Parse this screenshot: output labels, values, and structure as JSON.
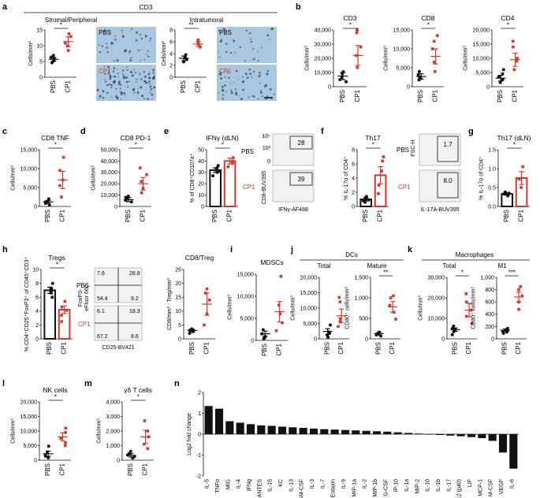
{
  "colors": {
    "pbs": "#111111",
    "cp1": "#d9372d",
    "micrograph_bg": "#a9c7df",
    "micrograph_cells": "#2a3340",
    "flow_bg": "#f2f2ee"
  },
  "figure": {
    "panels": [
      {
        "id": "a",
        "label": "a",
        "title": "CD3"
      },
      {
        "id": "b",
        "label": "b"
      },
      {
        "id": "c",
        "label": "c"
      },
      {
        "id": "d",
        "label": "d"
      },
      {
        "id": "e",
        "label": "e"
      },
      {
        "id": "f",
        "label": "f"
      },
      {
        "id": "g",
        "label": "g"
      },
      {
        "id": "h",
        "label": "h"
      },
      {
        "id": "i",
        "label": "i"
      },
      {
        "id": "j",
        "label": "j"
      },
      {
        "id": "k",
        "label": "k"
      },
      {
        "id": "l",
        "label": "l"
      },
      {
        "id": "m",
        "label": "m"
      },
      {
        "id": "n",
        "label": "n"
      }
    ],
    "panel_a": {
      "stromal_title": "Stromal/Peripheral",
      "intratumoral_title": "Intratumoral",
      "img_pbs": "PBS",
      "img_cp1": "CP1"
    },
    "panel_j": {
      "header": "DCs",
      "sub1": "Total",
      "sub2": "Mature"
    },
    "panel_k": {
      "header": "Macrophages",
      "sub1": "Total",
      "sub2": "M1"
    },
    "flow_e": {
      "ylabel": "CD8-BUV395",
      "xlabel": "IFNγ-AF488",
      "pbs": "PBS",
      "cp1": "CP1",
      "v1": "28",
      "v2": "39",
      "tick1": "10⁵",
      "tick2": "10³",
      "tick3": "0"
    },
    "flow_f": {
      "ylabel": "FSC-H",
      "xlabel": "IL-17A-BUV395",
      "pbs": "PBS",
      "cp1": "CP1",
      "v1": "1.7",
      "v2": "8.0"
    },
    "flow_h": {
      "ylabel1": "FoxP3-",
      "ylabel2": "eFluor 660",
      "xlabel": "CD25-BV421",
      "pbs": "PBS",
      "cp1": "CP1",
      "q_pbs": [
        "7.6",
        "28.8",
        "54.4",
        "9.2"
      ],
      "q_cp1": [
        "6.1",
        "18.3",
        "67.2",
        "8.6"
      ]
    }
  },
  "chart_data": [
    {
      "id": "a1",
      "type": "scatter",
      "title": "",
      "ylabel": "Cells/mm²",
      "categories": [
        "PBS",
        "CP1"
      ],
      "ylim": [
        0,
        15
      ],
      "ticks": [
        "0",
        "5",
        "10",
        "15"
      ],
      "sig": "*",
      "series": [
        {
          "name": "PBS",
          "points": [
            5.2,
            5.8,
            6.3,
            4.6,
            6.9
          ],
          "mean": 5.7,
          "sem": 0.6
        },
        {
          "name": "CP1",
          "points": [
            8.5,
            10.8,
            12.9,
            13.8,
            9.9
          ],
          "mean": 11.3,
          "sem": 1.5
        }
      ]
    },
    {
      "id": "a2",
      "type": "scatter",
      "title": "",
      "ylabel": "Cells/mm²",
      "categories": [
        "PBS",
        "CP1"
      ],
      "ylim": [
        0,
        8
      ],
      "ticks": [
        "0",
        "2",
        "4",
        "6",
        "8"
      ],
      "sig": "**",
      "series": [
        {
          "name": "PBS",
          "points": [
            3.3,
            2.6,
            3.8,
            3.0
          ],
          "mean": 3.2,
          "sem": 0.4
        },
        {
          "name": "CP1",
          "points": [
            5.1,
            6.3,
            5.7,
            5.4
          ],
          "mean": 5.6,
          "sem": 0.4
        }
      ]
    },
    {
      "id": "b1",
      "type": "scatter",
      "title": "CD3",
      "ylabel": "Cells/mm³",
      "categories": [
        "PBS",
        "CP1"
      ],
      "ylim": [
        0,
        40000
      ],
      "ticks": [
        "0",
        "10,000",
        "20,000",
        "30,000",
        "40,000"
      ],
      "sig": "*",
      "series": [
        {
          "name": "PBS",
          "points": [
            3500,
            6500,
            9000,
            10500,
            5000
          ],
          "mean": 7500,
          "sem": 2500
        },
        {
          "name": "CP1",
          "points": [
            13500,
            28000,
            38000,
            40000,
            22000
          ],
          "mean": 22000,
          "sem": 7000
        }
      ]
    },
    {
      "id": "b2",
      "type": "scatter",
      "title": "CD8",
      "ylabel": "Cells/mm³",
      "categories": [
        "PBS",
        "CP1"
      ],
      "ylim": [
        0,
        15000
      ],
      "ticks": [
        "0",
        "5,000",
        "10,000",
        "15,000"
      ],
      "sig": "*",
      "series": [
        {
          "name": "PBS",
          "points": [
            1800,
            2500,
            3200,
            4000,
            2200
          ],
          "mean": 2700,
          "sem": 700
        },
        {
          "name": "CP1",
          "points": [
            4000,
            6500,
            10000,
            12000,
            13500
          ],
          "mean": 8000,
          "sem": 2000
        }
      ]
    },
    {
      "id": "b3",
      "type": "scatter",
      "title": "CD4",
      "ylabel": "Cells/mm³",
      "categories": [
        "PBS",
        "CP1"
      ],
      "ylim": [
        0,
        20000
      ],
      "ticks": [
        "0",
        "5,000",
        "10,000",
        "15,000",
        "20,000"
      ],
      "sig": "*",
      "series": [
        {
          "name": "PBS",
          "points": [
            1500,
            3500,
            4500,
            6000,
            2500
          ],
          "mean": 3000,
          "sem": 1000
        },
        {
          "name": "CP1",
          "points": [
            6000,
            9000,
            10000,
            14000,
            16000
          ],
          "mean": 9500,
          "sem": 2300
        }
      ]
    },
    {
      "id": "c",
      "type": "scatter",
      "title": "CD8 TNF",
      "ylabel": "Cells/mm³",
      "categories": [
        "PBS",
        "CP1"
      ],
      "ylim": [
        0,
        15000
      ],
      "ticks": [
        "0",
        "5,000",
        "10,000",
        "15,000"
      ],
      "sig": "*",
      "series": [
        {
          "name": "PBS",
          "points": [
            400,
            800,
            1300,
            2000,
            1200
          ],
          "mean": 1200,
          "sem": 400
        },
        {
          "name": "CP1",
          "points": [
            2500,
            5500,
            7000,
            9500,
            13000
          ],
          "mean": 7000,
          "sem": 2300
        }
      ]
    },
    {
      "id": "d",
      "type": "scatter",
      "title": "CD8 PD-1",
      "ylabel": "Cells/mm³",
      "categories": [
        "PBS",
        "CP1"
      ],
      "ylim": [
        0,
        50000
      ],
      "ticks": [
        "0",
        "10,000",
        "20,000",
        "30,000",
        "40,000",
        "50,000"
      ],
      "sig": "*",
      "series": [
        {
          "name": "PBS",
          "points": [
            4000,
            5500,
            8000,
            6500,
            9000
          ],
          "mean": 6000,
          "sem": 1800
        },
        {
          "name": "CP1",
          "points": [
            12000,
            16000,
            22000,
            28000,
            34000
          ],
          "mean": 20000,
          "sem": 5500
        }
      ]
    },
    {
      "id": "e",
      "type": "bar",
      "title": "IFNγ (dLN)",
      "ylabel": "% of CD8⁺CD107a⁺",
      "categories": [
        "PBS",
        "CP1"
      ],
      "ylim": [
        0,
        50
      ],
      "ticks": [
        "0",
        "10",
        "20",
        "30",
        "40",
        "50"
      ],
      "sig": "*",
      "series": [
        {
          "name": "PBS",
          "points": [
            27,
            31,
            34,
            36,
            30
          ],
          "mean": 32,
          "sem": 2.0
        },
        {
          "name": "CP1",
          "points": [
            35,
            40,
            43,
            38
          ],
          "mean": 40,
          "sem": 2.5
        }
      ]
    },
    {
      "id": "f",
      "type": "bar",
      "title": "Th17",
      "ylabel": "% IL-17α of CD4⁺",
      "categories": [
        "PBS",
        "CP1"
      ],
      "ylim": [
        0,
        8
      ],
      "ticks": [
        "0",
        "2",
        "4",
        "6",
        "8"
      ],
      "sig": "*",
      "series": [
        {
          "name": "PBS",
          "points": [
            0.6,
            0.9,
            1.2,
            1.4,
            0.8
          ],
          "mean": 1.0,
          "sem": 0.2
        },
        {
          "name": "CP1",
          "points": [
            1.8,
            3.0,
            5.0,
            6.4,
            7.0
          ],
          "mean": 4.4,
          "sem": 1.2
        }
      ]
    },
    {
      "id": "g",
      "type": "bar",
      "title": "Th17 (dLN)",
      "ylabel": "% IL-17α of CD4⁺",
      "categories": [
        "PBS",
        "CP1"
      ],
      "ylim": [
        0,
        1.5
      ],
      "ticks": [
        "0.0",
        "0.5",
        "1.0",
        "1.5"
      ],
      "sig": "*",
      "series": [
        {
          "name": "PBS",
          "points": [
            0.28,
            0.35,
            0.33,
            0.38
          ],
          "mean": 0.33,
          "sem": 0.03
        },
        {
          "name": "CP1",
          "points": [
            0.5,
            0.72,
            1.05
          ],
          "mean": 0.75,
          "sem": 0.17
        }
      ]
    },
    {
      "id": "h1",
      "type": "bar",
      "title": "Tregs",
      "ylabel": "% CD4⁺CD25⁺FoxP3⁺ of CD45⁺CD3⁺",
      "categories": [
        "PBS",
        "CP1"
      ],
      "ylim": [
        0,
        10
      ],
      "ticks": [
        "0",
        "2",
        "4",
        "6",
        "8",
        "10"
      ],
      "sig": "*",
      "series": [
        {
          "name": "PBS",
          "points": [
            6.0,
            6.6,
            7.3,
            8.0,
            7.0
          ],
          "mean": 7.0,
          "sem": 0.45
        },
        {
          "name": "CP1",
          "points": [
            2.5,
            3.4,
            4.6,
            5.4,
            4.1
          ],
          "mean": 4.2,
          "sem": 0.55
        }
      ]
    },
    {
      "id": "h2",
      "type": "scatter",
      "title": "CD8/Treg",
      "ylabel": "CD8/mm³ : Treg/mm³",
      "categories": [
        "PBS",
        "CP1"
      ],
      "ylim": [
        0,
        25
      ],
      "ticks": [
        "0",
        "5",
        "10",
        "15",
        "20",
        "25"
      ],
      "sig": "",
      "series": [
        {
          "name": "PBS",
          "points": [
            2.0,
            3.0,
            3.6,
            2.6,
            3.1
          ],
          "mean": 3.0,
          "sem": 0.5
        },
        {
          "name": "CP1",
          "points": [
            5.0,
            9.0,
            14.0,
            18.0,
            16.5
          ],
          "mean": 12.5,
          "sem": 4.0
        }
      ]
    },
    {
      "id": "i",
      "type": "scatter",
      "title": "MDSCs",
      "ylabel": "Cells/mm³",
      "categories": [
        "PBS",
        "CP1"
      ],
      "ylim": [
        0,
        15000
      ],
      "ticks": [
        "0",
        "5,000",
        "10,000",
        "15,000"
      ],
      "sig": "",
      "series": [
        {
          "name": "PBS",
          "points": [
            400,
            900,
            1500,
            2400,
            600
          ],
          "mean": 1500,
          "sem": 600
        },
        {
          "name": "CP1",
          "points": [
            2200,
            4000,
            6000,
            8000,
            14500
          ],
          "mean": 6500,
          "sem": 2300
        }
      ]
    },
    {
      "id": "j1",
      "type": "scatter",
      "title": "Total",
      "ylabel": "Cells/mm³",
      "categories": [
        "PBS",
        "CP1"
      ],
      "ylim": [
        0,
        20000
      ],
      "ticks": [
        "0",
        "5,000",
        "10,000",
        "15,000",
        "20,000"
      ],
      "sig": "",
      "series": [
        {
          "name": "PBS",
          "points": [
            500,
            1200,
            2200,
            4500,
            1800
          ],
          "mean": 2400,
          "sem": 900
        },
        {
          "name": "CP1",
          "points": [
            4000,
            5500,
            6500,
            12000,
            13500
          ],
          "mean": 7500,
          "sem": 2200
        }
      ]
    },
    {
      "id": "j2",
      "type": "scatter",
      "title": "Mature",
      "ylabel": "CD80⁺ cells/mm³",
      "categories": [
        "PBS",
        "CP1"
      ],
      "ylim": [
        0,
        1500
      ],
      "ticks": [
        "0",
        "500",
        "1,000",
        "1,500"
      ],
      "sig": "**",
      "series": [
        {
          "name": "PBS",
          "points": [
            70,
            110,
            140,
            160,
            95
          ],
          "mean": 130,
          "sem": 30
        },
        {
          "name": "CP1",
          "points": [
            480,
            650,
            820,
            1000,
            1050
          ],
          "mean": 780,
          "sem": 130
        }
      ]
    },
    {
      "id": "k1",
      "type": "scatter",
      "title": "Total",
      "ylabel": "Cells/mm³",
      "categories": [
        "PBS",
        "CP1"
      ],
      "ylim": [
        0,
        30000
      ],
      "ticks": [
        "0",
        "10,000",
        "20,000",
        "30,000"
      ],
      "sig": "*",
      "series": [
        {
          "name": "PBS",
          "points": [
            2000,
            3500,
            5000,
            6200,
            4500
          ],
          "mean": 4500,
          "sem": 800
        },
        {
          "name": "CP1",
          "points": [
            7500,
            11000,
            14000,
            18000,
            22000
          ],
          "mean": 14000,
          "sem": 3200
        }
      ]
    },
    {
      "id": "k2",
      "type": "scatter",
      "title": "M1",
      "ylabel": "CD80⁺ cells/mm³",
      "categories": [
        "PBS",
        "CP1"
      ],
      "ylim": [
        0,
        1000
      ],
      "ticks": [
        "0",
        "200",
        "400",
        "600",
        "800",
        "1,000"
      ],
      "sig": "***",
      "series": [
        {
          "name": "PBS",
          "points": [
            90,
            120,
            150,
            170,
            110,
            135
          ],
          "mean": 140,
          "sem": 20
        },
        {
          "name": "CP1",
          "points": [
            480,
            600,
            700,
            800,
            850
          ],
          "mean": 680,
          "sem": 80
        }
      ]
    },
    {
      "id": "l",
      "type": "scatter",
      "title": "NK cells",
      "ylabel": "Cells/mm³",
      "categories": [
        "PBS",
        "CP1"
      ],
      "ylim": [
        0,
        20000
      ],
      "ticks": [
        "0",
        "5,000",
        "10,000",
        "15,000",
        "20,000"
      ],
      "sig": "*",
      "series": [
        {
          "name": "PBS",
          "points": [
            800,
            1800,
            2800,
            4800,
            1400
          ],
          "mean": 2200,
          "sem": 900
        },
        {
          "name": "CP1",
          "points": [
            5000,
            6000,
            7500,
            9500,
            11000
          ],
          "mean": 8000,
          "sem": 1400
        }
      ]
    },
    {
      "id": "m",
      "type": "scatter",
      "title": "γδ T cells",
      "ylabel": "Cells/mm³",
      "categories": [
        "PBS",
        "CP1"
      ],
      "ylim": [
        0,
        4000
      ],
      "ticks": [
        "0",
        "1,000",
        "2,000",
        "3,000",
        "4,000"
      ],
      "sig": "*",
      "series": [
        {
          "name": "PBS",
          "points": [
            150,
            250,
            350,
            450,
            600
          ],
          "mean": 330,
          "sem": 120
        },
        {
          "name": "CP1",
          "points": [
            800,
            1100,
            1600,
            2000,
            2700
          ],
          "mean": 1600,
          "sem": 450
        }
      ]
    },
    {
      "id": "n",
      "type": "bar",
      "title": "",
      "ylabel": "Log2 fold change",
      "ylim": [
        -2,
        2
      ],
      "ticks": [
        "-2",
        "-1",
        "0",
        "1",
        "2"
      ],
      "categories": [
        "IL-5",
        "TNFα",
        "MIG",
        "IL-4",
        "IFNg",
        "RANTES",
        "IL-15",
        "KC",
        "IL-13",
        "GM-CSF",
        "IL-3",
        "IL-7",
        "Eotaxin",
        "IL-9",
        "MIP-1a",
        "IL-2",
        "MIP-1b",
        "G-CSF",
        "IP-10",
        "IL-1a",
        "MIP-2",
        "IL-10",
        "IL-1b",
        "IL-17",
        "IL-12 (p40)",
        "LIF",
        "MCP-1",
        "M-CSF",
        "VEGF",
        "IL-6"
      ],
      "values": [
        1.35,
        1.22,
        0.62,
        0.55,
        0.48,
        0.42,
        0.4,
        0.36,
        0.33,
        0.3,
        0.27,
        0.24,
        0.22,
        0.2,
        0.18,
        0.16,
        0.14,
        0.12,
        0.09,
        0.06,
        0.03,
        -0.02,
        -0.04,
        -0.07,
        -0.1,
        -0.14,
        -0.19,
        -0.32,
        -0.88,
        -1.65
      ]
    }
  ]
}
